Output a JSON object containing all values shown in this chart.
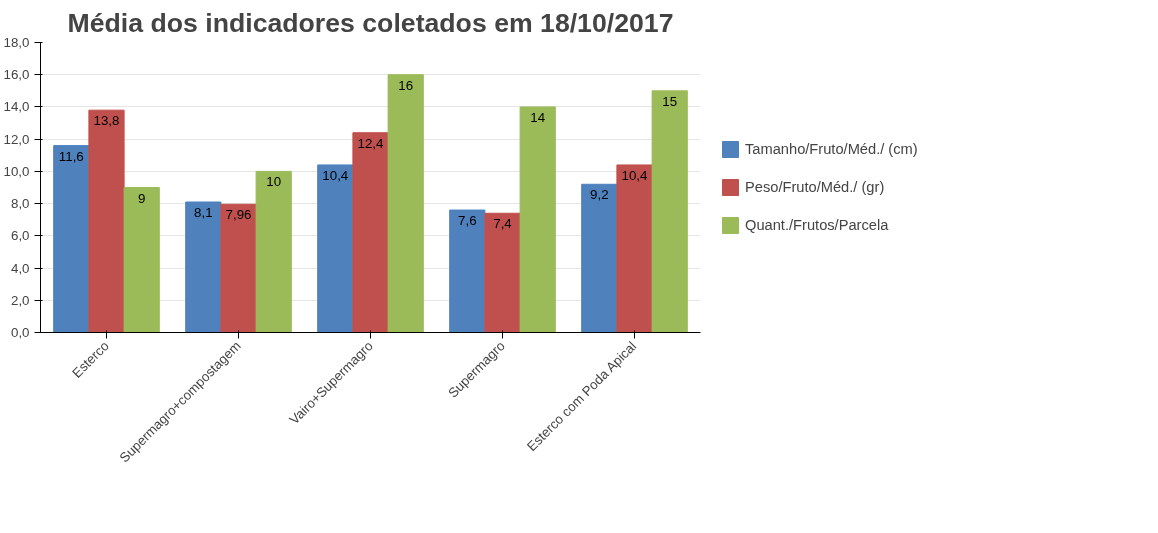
{
  "chart_data": {
    "type": "bar",
    "title": "Média dos indicadores coletados em 18/10/2017",
    "categories": [
      "Esterco",
      "Supermagro+compostagem",
      "Vairo+Supermagro",
      "Supermagro",
      "Esterco com Poda Apical"
    ],
    "series": [
      {
        "name": "Tamanho/Fruto/Méd./ (cm)",
        "color": "#4f81bd",
        "values": [
          11.6,
          8.1,
          10.4,
          7.6,
          9.2
        ],
        "value_labels": [
          "11,6",
          "8,1",
          "10,4",
          "7,6",
          "9,2"
        ]
      },
      {
        "name": "Peso/Fruto/Méd./ (gr)",
        "color": "#c0504d",
        "values": [
          13.8,
          7.96,
          12.4,
          7.4,
          10.4
        ],
        "value_labels": [
          "13,8",
          "7,96",
          "12,4",
          "7,4",
          "10,4"
        ]
      },
      {
        "name": "Quant./Frutos/Parcela",
        "color": "#9bbb59",
        "values": [
          9,
          10,
          16,
          14,
          15
        ],
        "value_labels": [
          "9",
          "10",
          "16",
          "14",
          "15"
        ]
      }
    ],
    "ylim": [
      0,
      18
    ],
    "yticks": [
      {
        "value": 0,
        "label": "0,0"
      },
      {
        "value": 2,
        "label": "2,0"
      },
      {
        "value": 4,
        "label": "4,0"
      },
      {
        "value": 6,
        "label": "6,0"
      },
      {
        "value": 8,
        "label": "8,0"
      },
      {
        "value": 10,
        "label": "10,0"
      },
      {
        "value": 12,
        "label": "12,0"
      },
      {
        "value": 14,
        "label": "14,0"
      },
      {
        "value": 16,
        "label": "16,0"
      },
      {
        "value": 18,
        "label": "18,0"
      }
    ],
    "grid": "y",
    "legend": "right"
  }
}
